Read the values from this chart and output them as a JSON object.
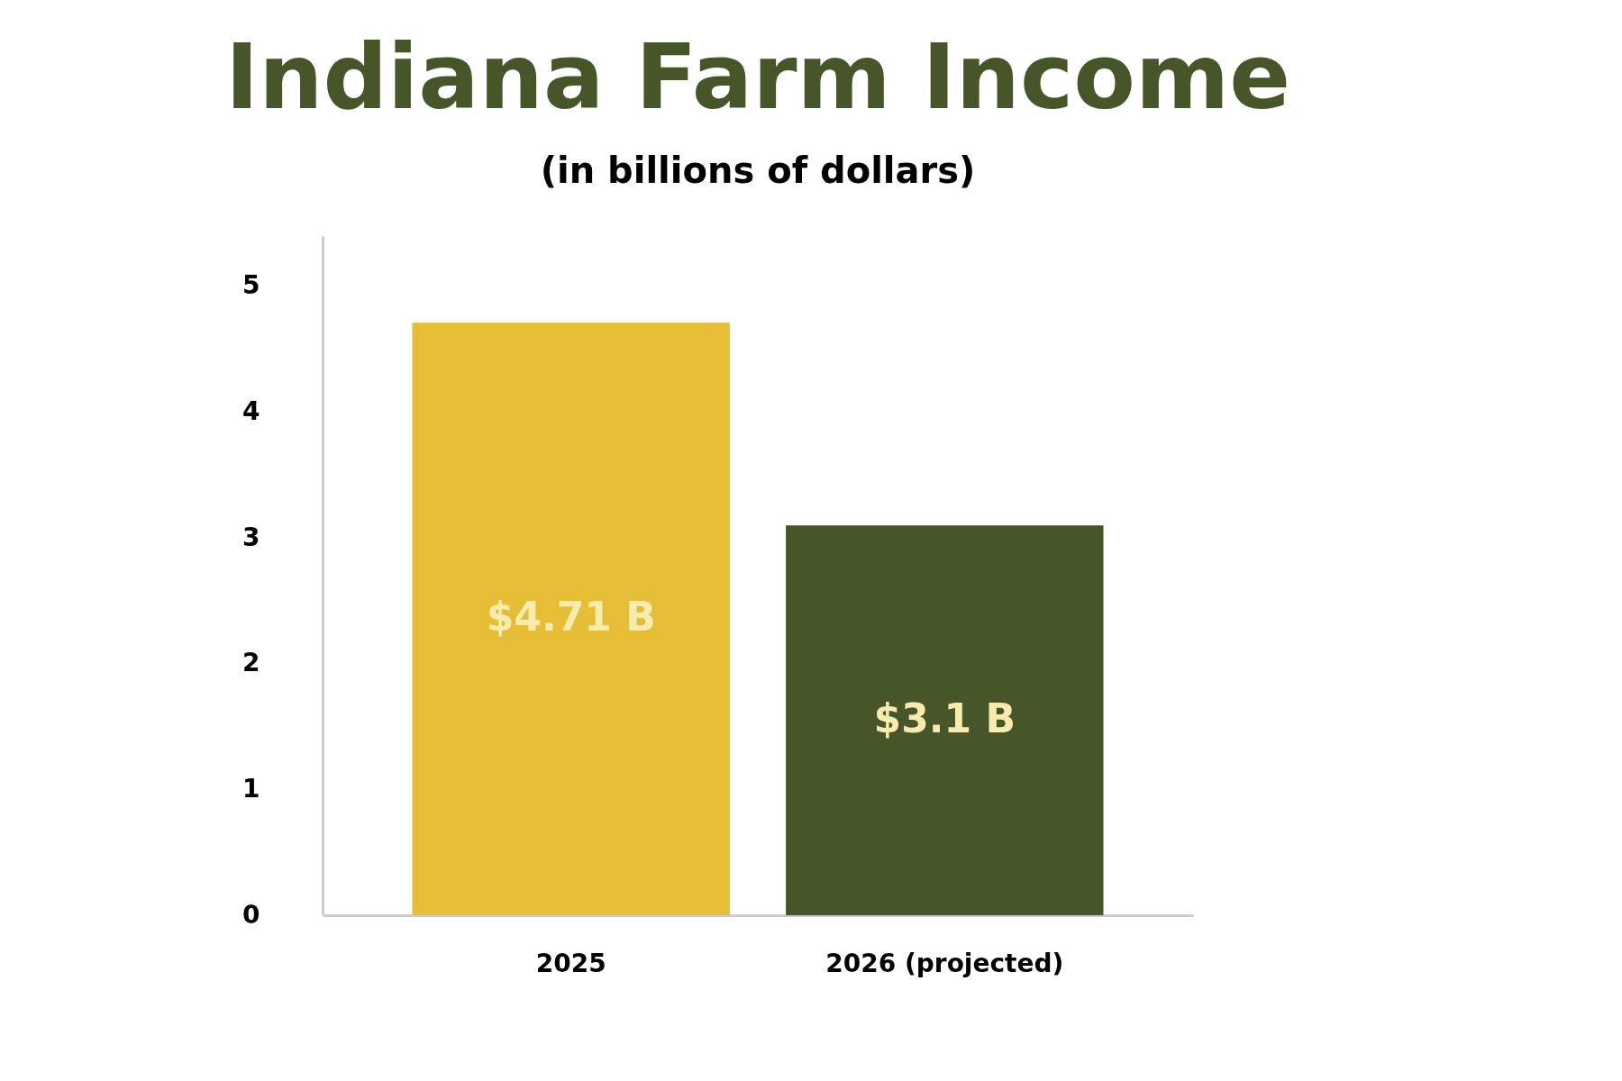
{
  "chart_data": {
    "type": "bar",
    "title": "Indiana Farm Income",
    "subtitle": "(in billions of dollars)",
    "categories": [
      "2025",
      "2026 (projected)"
    ],
    "values": [
      4.71,
      3.1
    ],
    "colors": [
      "#e6be35",
      "#475628"
    ],
    "value_labels": [
      "$4.71 B",
      "$3.1 B"
    ],
    "ylim": [
      0,
      5.4
    ],
    "yticks": [
      0,
      1,
      2,
      3,
      4,
      5
    ],
    "grid": false
  }
}
